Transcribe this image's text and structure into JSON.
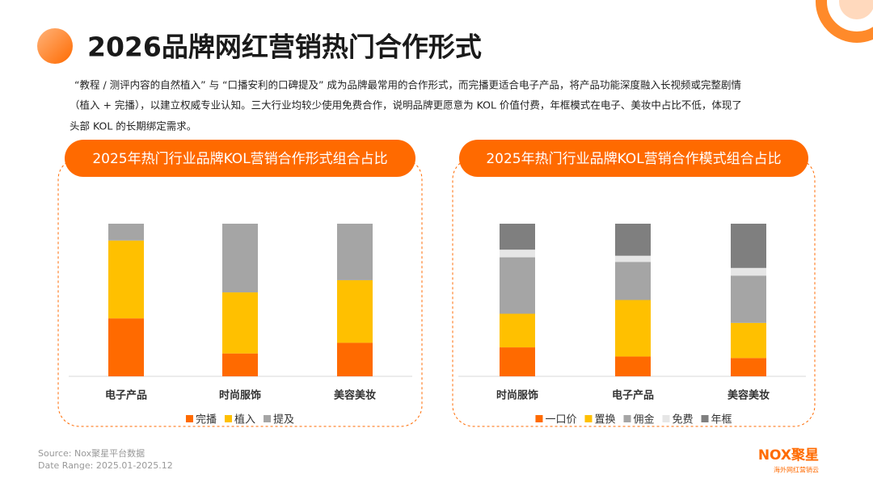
{
  "header": {
    "title": "2026品牌网红营销热门合作形式",
    "description": [
      "“教程 / 测评内容的自然植入” 与 “口播安利的口碑提及” 成为品牌最常用的合作形式，而完播更适合电子产品，将产品功能深度融入长视频或完整剧情",
      "（植入 + 完播），以建立权威专业认知。三大行业均较少使用免费合作，说明品牌更愿意为 KOL 价值付费，年框模式在电子、美妆中占比不低，体现了",
      "头部 KOL 的长期绑定需求。"
    ]
  },
  "chart_data": [
    {
      "type": "stacked-bar",
      "title": "2025年热门行业品牌KOL营销合作形式组合占比",
      "categories": [
        "电子产品",
        "时尚服饰",
        "美容美妆"
      ],
      "ylim": [
        0,
        100
      ],
      "series": [
        {
          "name": "完播",
          "color": "#ff6a00",
          "values": [
            38,
            15,
            22
          ]
        },
        {
          "name": "植入",
          "color": "#ffc000",
          "values": [
            51,
            40,
            41
          ]
        },
        {
          "name": "提及",
          "color": "#a5a5a5",
          "values": [
            11,
            45,
            37
          ]
        }
      ]
    },
    {
      "type": "stacked-bar",
      "title": "2025年热门行业品牌KOL营销合作模式组合占比",
      "categories": [
        "时尚服饰",
        "电子产品",
        "美容美妆"
      ],
      "ylim": [
        0,
        100
      ],
      "series": [
        {
          "name": "一口价",
          "color": "#ff6a00",
          "values": [
            19,
            13,
            12
          ]
        },
        {
          "name": "置换",
          "color": "#ffc000",
          "values": [
            22,
            37,
            23
          ]
        },
        {
          "name": "佣金",
          "color": "#a5a5a5",
          "values": [
            37,
            25,
            31
          ]
        },
        {
          "name": "免费",
          "color": "#e6e6e6",
          "values": [
            5,
            4,
            5
          ]
        },
        {
          "name": "年框",
          "color": "#7f7f7f",
          "values": [
            17,
            21,
            29
          ]
        }
      ]
    }
  ],
  "footer": {
    "source": "Source:    Nox聚星平台数据",
    "date_range": "Date Range:  2025.01-2025.12",
    "logo": "NOX聚星",
    "logo_tagline": "海外网红营销云"
  }
}
